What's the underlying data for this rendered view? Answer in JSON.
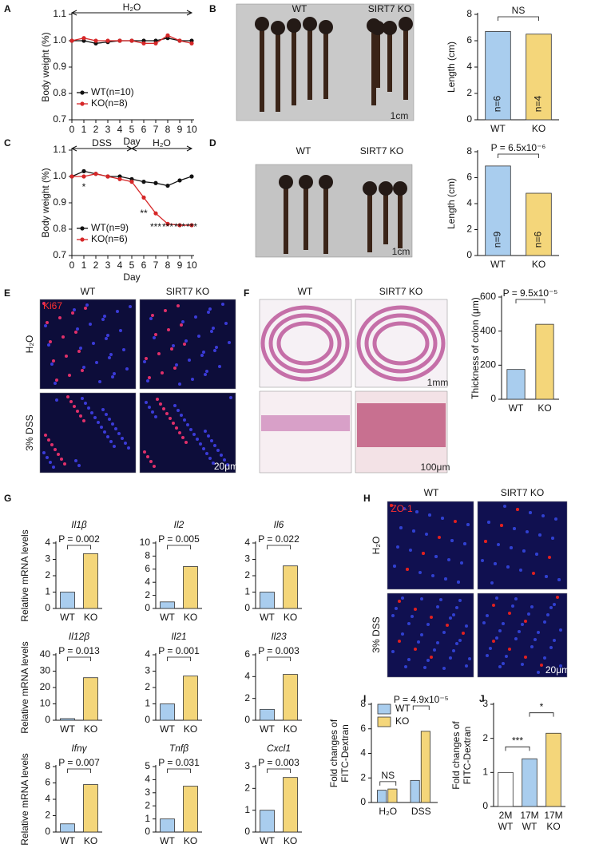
{
  "panel_labels": [
    "A",
    "B",
    "C",
    "D",
    "E",
    "F",
    "G",
    "H",
    "I",
    "J"
  ],
  "image_text": [
    "WT",
    "SIRT7 KO",
    "1cm",
    "WT",
    "SIRT7 KO",
    "1cm",
    "WT",
    "SIRT7 KO",
    "Ki67",
    "H₂O",
    "3% DSS",
    "20μm",
    "WT",
    "SIRT7 KO",
    "1mm",
    "100μm",
    "WT",
    "SIRT7 KO",
    "ZO-1",
    "H₂O",
    "3% DSS",
    "20μm"
  ],
  "chart_data": [
    {
      "type": "line",
      "x": [
        0,
        1,
        2,
        3,
        4,
        5,
        6,
        7,
        8,
        9,
        10
      ],
      "xlim": [
        0,
        10
      ],
      "xticks": [
        0,
        1,
        2,
        3,
        4,
        5,
        6,
        7,
        8,
        9,
        10
      ],
      "ylim": [
        0.7,
        1.1
      ],
      "yticks": [
        0.7,
        0.8,
        0.9,
        {
          "value": 1,
          "label": "1.0"
        },
        1.1
      ],
      "xlabel": "Day",
      "ylabel": "Body weight (%)",
      "annotations": [
        "H₂O"
      ],
      "series": [
        {
          "name": "WT(n=10)",
          "color": "#111111",
          "values": [
            1.0,
            1.0,
            0.99,
            0.995,
            1.0,
            1.0,
            1.0,
            1.0,
            1.01,
            1.0,
            1.0
          ]
        },
        {
          "name": "KO(n=8)",
          "color": "#d62728",
          "values": [
            1.0,
            1.01,
            1.0,
            1.0,
            1.0,
            1.0,
            0.99,
            0.99,
            1.02,
            1.0,
            0.99
          ]
        }
      ]
    },
    {
      "type": "bar",
      "categories": [
        "WT",
        "KO"
      ],
      "values": [
        6.7,
        6.5
      ],
      "colors": [
        "#a9cdee",
        "#f4d67a"
      ],
      "ylim": [
        0,
        8
      ],
      "yticks": [
        0,
        2,
        4,
        6,
        8
      ],
      "ylabel": "Length (cm)",
      "annotations": [
        "NS"
      ],
      "bar_labels": [
        "n=6",
        "n=4"
      ]
    },
    {
      "type": "line",
      "x": [
        0,
        1,
        2,
        3,
        4,
        5,
        6,
        7,
        8,
        9,
        10
      ],
      "xlim": [
        0,
        10
      ],
      "xticks": [
        0,
        1,
        2,
        3,
        4,
        5,
        6,
        7,
        8,
        9,
        10
      ],
      "ylim": [
        0.7,
        1.1
      ],
      "yticks": [
        0.7,
        0.8,
        0.9,
        {
          "value": 1,
          "label": "1.0"
        },
        1.1
      ],
      "xlabel": "Day",
      "ylabel": "Body weight (%)",
      "annotations": [
        "DSS",
        "H₂O",
        "*",
        "**",
        "***",
        "***",
        "***",
        "***"
      ],
      "series": [
        {
          "name": "WT(n=9)",
          "color": "#111111",
          "values": [
            1.0,
            1.02,
            1.01,
            1.0,
            1.0,
            0.99,
            0.98,
            0.975,
            0.965,
            0.985,
            1.0
          ]
        },
        {
          "name": "KO(n=6)",
          "color": "#d62728",
          "values": [
            1.0,
            1.0,
            1.01,
            1.0,
            0.99,
            0.98,
            0.92,
            0.86,
            0.82,
            0.815,
            0.815
          ]
        }
      ]
    },
    {
      "type": "bar",
      "categories": [
        "WT",
        "KO"
      ],
      "values": [
        6.9,
        4.8
      ],
      "colors": [
        "#a9cdee",
        "#f4d67a"
      ],
      "ylim": [
        0,
        8
      ],
      "yticks": [
        0,
        2,
        4,
        6,
        8
      ],
      "ylabel": "Length (cm)",
      "annotations": [
        "P = 6.5x10⁻⁶"
      ],
      "bar_labels": [
        "n=9",
        "n=6"
      ]
    },
    {
      "type": "bar",
      "categories": [
        "WT",
        "KO"
      ],
      "values": [
        175,
        440
      ],
      "colors": [
        "#a9cdee",
        "#f4d67a"
      ],
      "ylim": [
        0,
        600
      ],
      "yticks": [
        0,
        200,
        400,
        600
      ],
      "ylabel": "Thickness of colon (μm)",
      "annotations": [
        "P = 9.5x10⁻⁵"
      ]
    },
    {
      "type": "bar",
      "title": "Il1β",
      "categories": [
        "WT",
        "KO"
      ],
      "values": [
        1.0,
        3.35
      ],
      "colors": [
        "#a9cdee",
        "#f4d67a"
      ],
      "ylim": [
        0,
        4
      ],
      "yticks": [
        0,
        1,
        2,
        3,
        4
      ],
      "ylabel": "Relative mRNA levels",
      "annotations": [
        "P = 0.002"
      ]
    },
    {
      "type": "bar",
      "title": "Il2",
      "categories": [
        "WT",
        "KO"
      ],
      "values": [
        1.0,
        6.4
      ],
      "colors": [
        "#a9cdee",
        "#f4d67a"
      ],
      "ylim": [
        0,
        10
      ],
      "yticks": [
        0,
        2,
        4,
        6,
        8,
        10
      ],
      "annotations": [
        "P = 0.005"
      ]
    },
    {
      "type": "bar",
      "title": "Il6",
      "categories": [
        "WT",
        "KO"
      ],
      "values": [
        1.0,
        2.6
      ],
      "colors": [
        "#a9cdee",
        "#f4d67a"
      ],
      "ylim": [
        0,
        4
      ],
      "yticks": [
        0,
        1,
        2,
        3,
        4
      ],
      "annotations": [
        "P = 0.022"
      ]
    },
    {
      "type": "bar",
      "title": "Il12β",
      "categories": [
        "WT",
        "KO"
      ],
      "values": [
        1.0,
        26
      ],
      "colors": [
        "#a9cdee",
        "#f4d67a"
      ],
      "ylim": [
        0,
        40
      ],
      "yticks": [
        0,
        10,
        20,
        30,
        40
      ],
      "ylabel": "Relative mRNA levels",
      "annotations": [
        "P = 0.013"
      ]
    },
    {
      "type": "bar",
      "title": "Il21",
      "categories": [
        "WT",
        "KO"
      ],
      "values": [
        1.0,
        2.7
      ],
      "colors": [
        "#a9cdee",
        "#f4d67a"
      ],
      "ylim": [
        0,
        4
      ],
      "yticks": [
        0,
        1,
        2,
        3,
        4
      ],
      "annotations": [
        "P = 0.001"
      ]
    },
    {
      "type": "bar",
      "title": "Il23",
      "categories": [
        "WT",
        "KO"
      ],
      "values": [
        1.0,
        4.2
      ],
      "colors": [
        "#a9cdee",
        "#f4d67a"
      ],
      "ylim": [
        0,
        6
      ],
      "yticks": [
        0,
        2,
        4,
        6
      ],
      "annotations": [
        "P = 0.003"
      ]
    },
    {
      "type": "bar",
      "title": "Ifnγ",
      "categories": [
        "WT",
        "KO"
      ],
      "values": [
        1.0,
        5.8
      ],
      "colors": [
        "#a9cdee",
        "#f4d67a"
      ],
      "ylim": [
        0,
        8
      ],
      "yticks": [
        0,
        2,
        4,
        6,
        8
      ],
      "ylabel": "Relative mRNA levels",
      "annotations": [
        "P = 0.007"
      ]
    },
    {
      "type": "bar",
      "title": "Tnfβ",
      "categories": [
        "WT",
        "KO"
      ],
      "values": [
        1.0,
        3.5
      ],
      "colors": [
        "#a9cdee",
        "#f4d67a"
      ],
      "ylim": [
        0,
        5
      ],
      "yticks": [
        0,
        1,
        2,
        3,
        4,
        5
      ],
      "annotations": [
        "P = 0.031"
      ]
    },
    {
      "type": "bar",
      "title": "Cxcl1",
      "categories": [
        "WT",
        "KO"
      ],
      "values": [
        1.0,
        2.5
      ],
      "colors": [
        "#a9cdee",
        "#f4d67a"
      ],
      "ylim": [
        0,
        3
      ],
      "yticks": [
        0,
        1,
        2,
        3
      ],
      "annotations": [
        "P = 0.003"
      ]
    },
    {
      "type": "bar",
      "categories": [
        "H₂O",
        "DSS"
      ],
      "ylim": [
        0,
        8
      ],
      "yticks": [
        0,
        2,
        4,
        6,
        8
      ],
      "ylabel": [
        "Fold changes of",
        "FITC-Dextran"
      ],
      "annotations": [
        "NS",
        "P = 4.9x10⁻⁵"
      ],
      "series": [
        {
          "name": "WT",
          "color": "#a9cdee",
          "values": [
            1.0,
            1.8
          ]
        },
        {
          "name": "KO",
          "color": "#f4d67a",
          "values": [
            1.1,
            5.8
          ]
        }
      ]
    },
    {
      "type": "bar",
      "categories": [
        [
          "2M",
          "WT"
        ],
        [
          "17M",
          "WT"
        ],
        [
          "17M",
          "KO"
        ]
      ],
      "values": [
        1.0,
        1.4,
        2.15
      ],
      "colors": [
        "#ffffff",
        "#a9cdee",
        "#f4d67a"
      ],
      "ylim": [
        0,
        3
      ],
      "yticks": [
        0,
        1,
        2,
        3
      ],
      "ylabel": [
        "Fold changes of",
        "FITC-Dextran"
      ],
      "annotations": [
        "***",
        "*"
      ]
    }
  ]
}
